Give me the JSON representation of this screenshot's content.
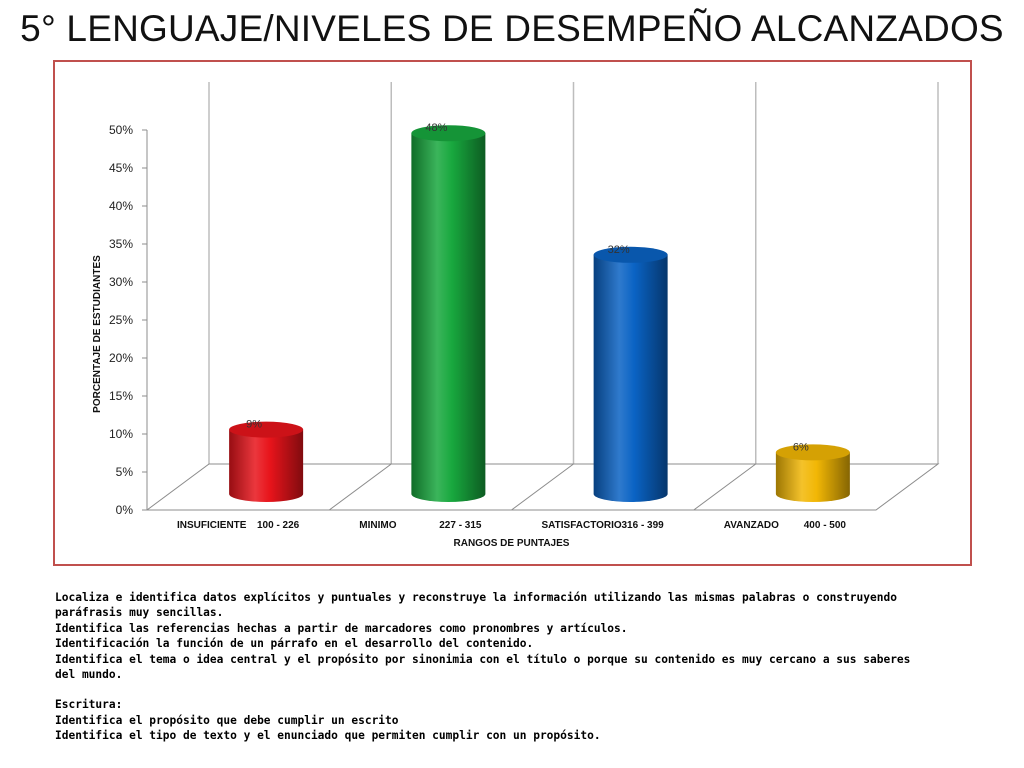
{
  "slide": {
    "title": "5° LENGUAJE/NIVELES DE DESEMPEÑO ALCANZADOS"
  },
  "chart_data": {
    "type": "bar",
    "subtype": "3d-cylinder",
    "categories": [
      [
        "INSUFICIENTE",
        "100 - 226"
      ],
      [
        "MINIMO",
        "227 - 315"
      ],
      [
        "SATISFACTORIO",
        "316 - 399"
      ],
      [
        "AVANZADO",
        "400 - 500"
      ]
    ],
    "values": [
      9,
      48,
      32,
      6
    ],
    "data_labels": [
      "9%",
      "48%",
      "32%",
      "6%"
    ],
    "colors": [
      "#e8141b",
      "#18a83e",
      "#0a63c4",
      "#f2b705"
    ],
    "xlabel": "RANGOS DE PUNTAJES",
    "ylabel": "PORCENTAJE DE ESTUDIANTES",
    "ylim": [
      0,
      50
    ],
    "yticks": [
      "0%",
      "5%",
      "10%",
      "15%",
      "20%",
      "25%",
      "30%",
      "35%",
      "40%",
      "45%",
      "50%"
    ],
    "grid": false,
    "legend": "none",
    "frame_color": "#c0504d"
  },
  "notes": {
    "lines": [
      "Localiza e identifica datos explícitos y puntuales y reconstruye la información utilizando las mismas palabras o construyendo paráfrasis muy sencillas.",
      "Identifica las referencias hechas a partir de marcadores como pronombres y artículos.",
      "Identificación la función de un párrafo en el desarrollo del contenido.",
      "Identifica el tema o idea central y el propósito por sinonimia con el título o porque su contenido es muy cercano a sus saberes del mundo."
    ],
    "writing_heading": "Escritura:",
    "writing_lines": [
      "Identifica el propósito que debe cumplir un escrito",
      "Identifica el tipo de texto y el enunciado que permiten cumplir con un propósito."
    ]
  }
}
